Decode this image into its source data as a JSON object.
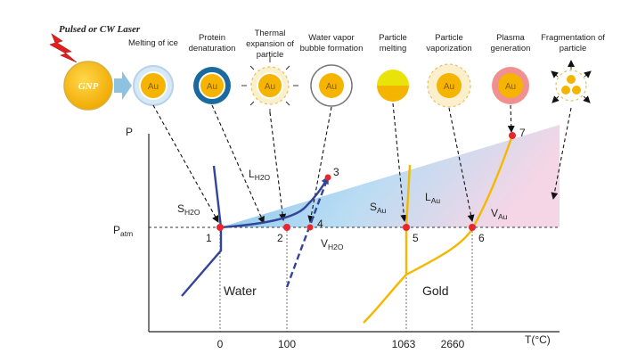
{
  "laser": {
    "label": "Pulsed or CW Laser"
  },
  "particle_labels": {
    "gnp": "GNP",
    "au": "Au"
  },
  "stages": [
    {
      "line1": "Melting of ice",
      "line2": "",
      "line3": ""
    },
    {
      "line1": "Protein",
      "line2": "denaturation",
      "line3": ""
    },
    {
      "line1": "Thermal",
      "line2": "expansion of",
      "line3": "particle"
    },
    {
      "line1": "Water vapor",
      "line2": "bubble formation",
      "line3": ""
    },
    {
      "line1": "Particle",
      "line2": "melting",
      "line3": ""
    },
    {
      "line1": "Particle",
      "line2": "vaporization",
      "line3": ""
    },
    {
      "line1": "Plasma",
      "line2": "generation",
      "line3": ""
    },
    {
      "line1": "Fragmentation of",
      "line2": "particle",
      "line3": ""
    }
  ],
  "axes": {
    "y_label": "P",
    "p_atm": {
      "main": "P",
      "sub": "atm"
    },
    "x_label": "T(°C)",
    "x_ticks": [
      "0",
      "100",
      "1063",
      "2660"
    ]
  },
  "phase_labels": {
    "s_h2o": {
      "main": "S",
      "sub": "H2O"
    },
    "l_h2o": {
      "main": "L",
      "sub": "H2O"
    },
    "v_h2o": {
      "main": "V",
      "sub": "H2O"
    },
    "s_au": {
      "main": "S",
      "sub": "Au"
    },
    "l_au": {
      "main": "L",
      "sub": "Au"
    },
    "v_au": {
      "main": "V",
      "sub": "Au"
    }
  },
  "regions": {
    "water": "Water",
    "gold": "Gold"
  },
  "points": [
    "1",
    "2",
    "3",
    "4",
    "5",
    "6",
    "7"
  ],
  "colors": {
    "water_curve": "#33449a",
    "gold_curve": "#f5b800",
    "point": "#e8262e",
    "gnp": "#f5b400",
    "arrow": "#8fc1e0"
  }
}
